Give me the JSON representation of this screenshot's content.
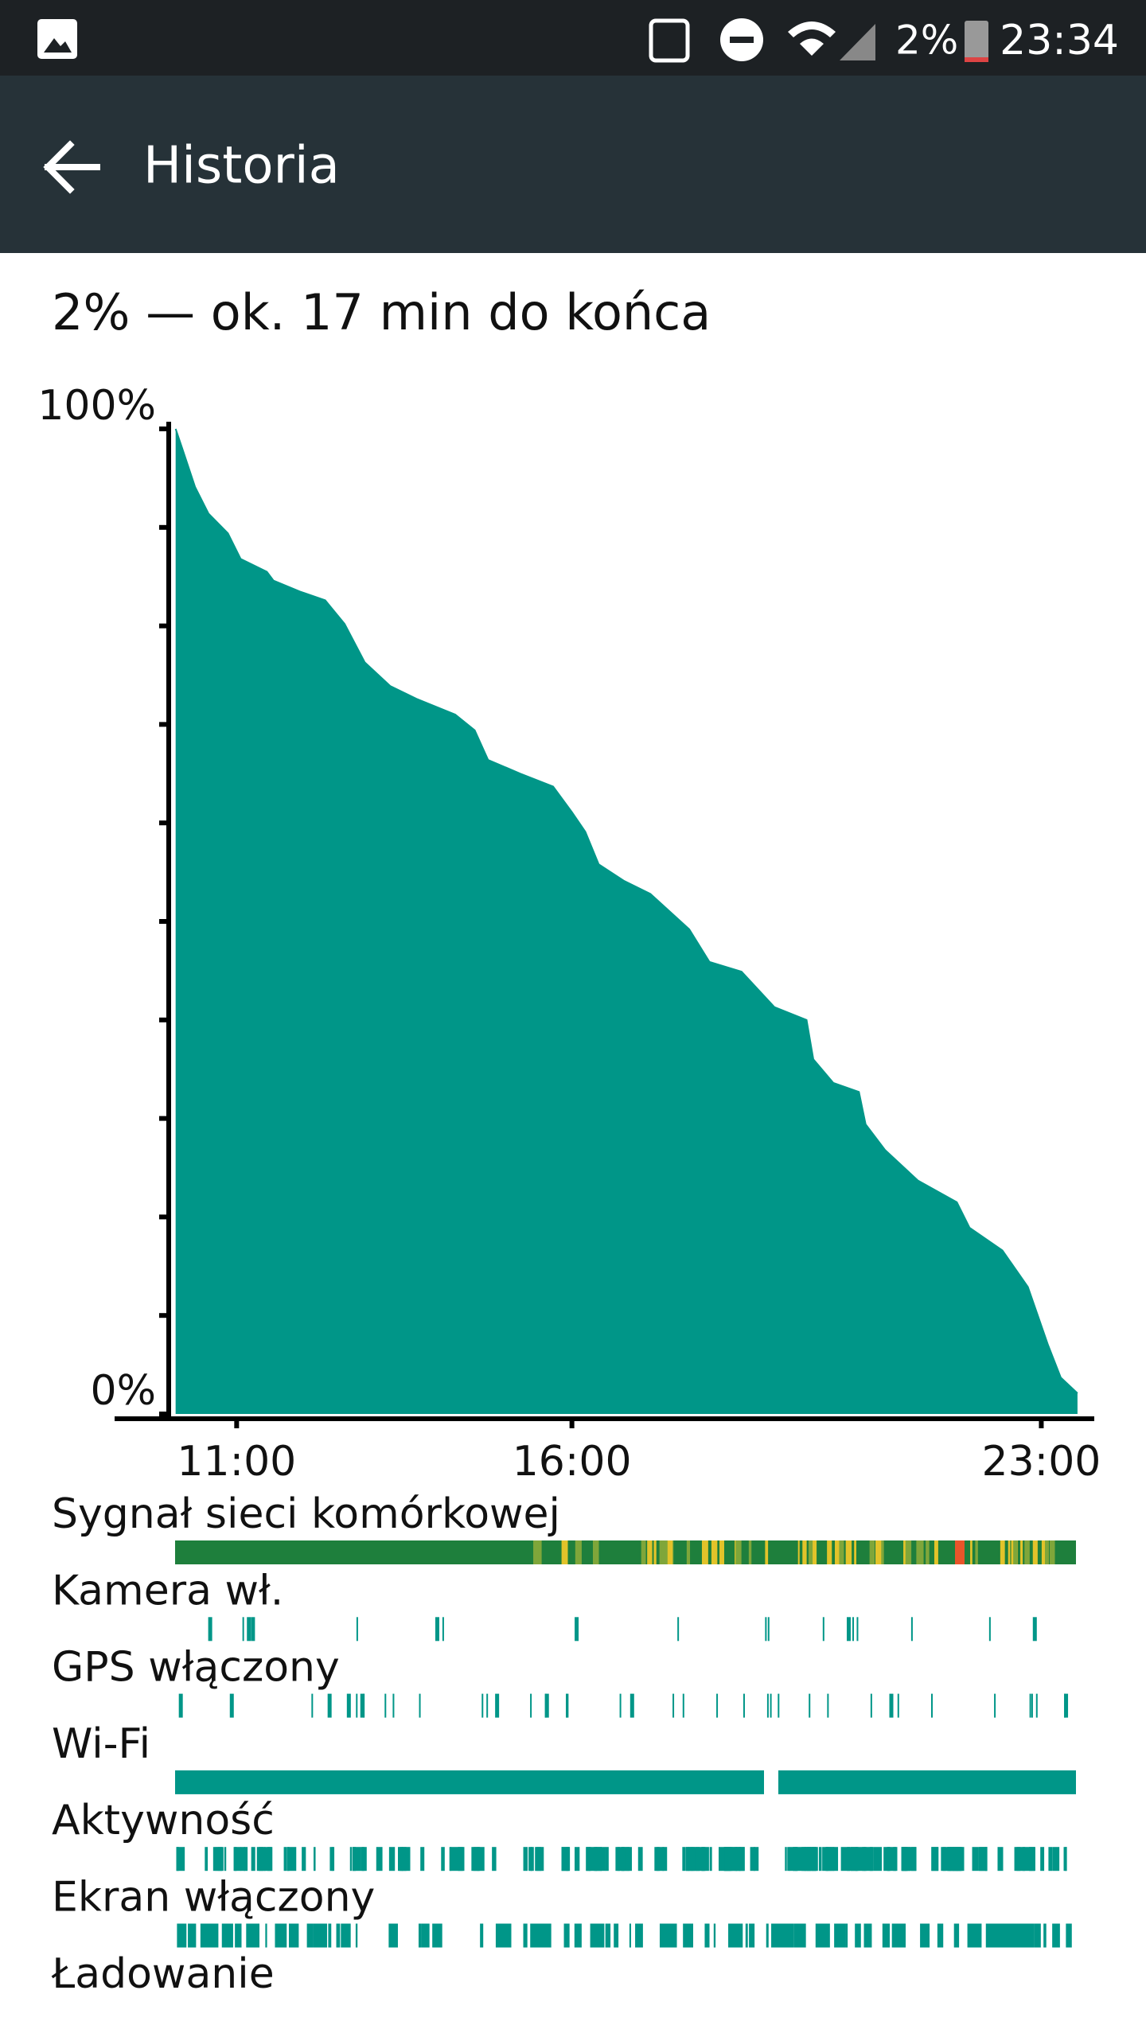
{
  "status_bar": {
    "battery": "2%",
    "time": "23:34"
  },
  "app_bar": {
    "title": "Historia"
  },
  "summary": "2% — ok. 17 min do końca",
  "chart_data": {
    "type": "area",
    "color": "#009688",
    "x": [
      10.09,
      10.19,
      10.38,
      10.58,
      10.87,
      11.06,
      11.45,
      11.55,
      11.94,
      12.32,
      12.61,
      12.91,
      13.29,
      13.68,
      14.26,
      14.55,
      14.75,
      15.23,
      15.72,
      16.0,
      16.2,
      16.4,
      16.78,
      17.17,
      17.75,
      18.05,
      18.53,
      19.02,
      19.5,
      19.6,
      19.9,
      20.28,
      20.38,
      20.67,
      21.16,
      21.74,
      21.93,
      22.42,
      22.8,
      23.1,
      23.29,
      23.54
    ],
    "values": [
      100,
      98.0,
      94.1,
      91.4,
      89.4,
      86.8,
      85.5,
      84.6,
      83.5,
      82.6,
      80.2,
      76.3,
      73.9,
      72.6,
      71.0,
      69.4,
      66.4,
      65.0,
      63.7,
      61.1,
      59.1,
      55.8,
      54.1,
      52.8,
      49.2,
      45.9,
      44.9,
      41.3,
      40.0,
      36.0,
      33.6,
      32.7,
      29.4,
      26.8,
      23.7,
      21.5,
      18.9,
      16.6,
      12.9,
      7.0,
      3.7,
      2.1
    ],
    "xlim": [
      9.18,
      23.79
    ],
    "xticks": [
      {
        "value": 11,
        "label": "11:00"
      },
      {
        "value": 16,
        "label": "16:00"
      },
      {
        "value": 23,
        "label": "23:00"
      }
    ],
    "ylim": [
      0,
      100
    ],
    "yticks": [
      {
        "value": 0,
        "label": "0%"
      },
      {
        "value": 100,
        "label": "100%"
      }
    ],
    "yminor": [
      10,
      20,
      30,
      40,
      50,
      60,
      70,
      80,
      90
    ]
  },
  "activity_rows": [
    "Sygnał sieci komórkowej",
    "Kamera wł.",
    "GPS włączony",
    "Wi-Fi",
    "Aktywność",
    "Ekran włączony",
    "Ładowanie"
  ]
}
